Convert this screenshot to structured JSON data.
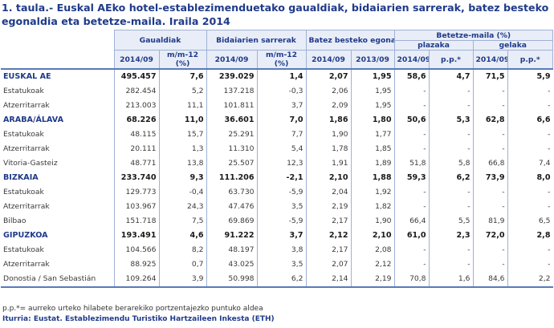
{
  "title": "1. taula.- Euskal AEko hotel-establezimenduetako gaualdiak, bidaiarien sarrerak, batez besteko egonaldia eta betetze-maila. Iraila 2014",
  "headers": {
    "gaualdiak": "Gaualdiak",
    "bidaiarien": "Bidaiarien sarrerak",
    "batez": "Batez besteko egonaldia",
    "betetze": "Betetze-maila (%)",
    "plazaka": "plazaka",
    "gelaka": "gelaka",
    "y2014": "2014/09",
    "y2013": "2013/09",
    "mm12": "m/m-12 (%)",
    "pp": "p.p.*"
  },
  "rows": [
    {
      "type": "main",
      "label": "EUSKAL AE",
      "c": [
        "495.457",
        "7,6",
        "239.029",
        "1,4",
        "2,07",
        "1,95",
        "58,6",
        "4,7",
        "71,5",
        "5,9"
      ]
    },
    {
      "type": "sub",
      "label": "Estatukoak",
      "c": [
        "282.454",
        "5,2",
        "137.218",
        "-0,3",
        "2,06",
        "1,95",
        "-",
        "-",
        "-",
        "-"
      ]
    },
    {
      "type": "sub",
      "label": "Atzerritarrak",
      "c": [
        "213.003",
        "11,1",
        "101.811",
        "3,7",
        "2,09",
        "1,95",
        "-",
        "-",
        "-",
        "-"
      ]
    },
    {
      "type": "main",
      "label": "ARABA/ÁLAVA",
      "c": [
        "68.226",
        "11,0",
        "36.601",
        "7,0",
        "1,86",
        "1,80",
        "50,6",
        "5,3",
        "62,8",
        "6,6"
      ]
    },
    {
      "type": "sub",
      "label": "Estatukoak",
      "c": [
        "48.115",
        "15,7",
        "25.291",
        "7,7",
        "1,90",
        "1,77",
        "-",
        "-",
        "-",
        "-"
      ]
    },
    {
      "type": "sub",
      "label": "Atzerritarrak",
      "c": [
        "20.111",
        "1,3",
        "11.310",
        "5,4",
        "1,78",
        "1,85",
        "-",
        "-",
        "-",
        "-"
      ]
    },
    {
      "type": "sub",
      "label": "Vitoria-Gasteiz",
      "c": [
        "48.771",
        "13,8",
        "25.507",
        "12,3",
        "1,91",
        "1,89",
        "51,8",
        "5,8",
        "66,8",
        "7,4"
      ]
    },
    {
      "type": "main",
      "label": "BIZKAIA",
      "c": [
        "233.740",
        "9,3",
        "111.206",
        "-2,1",
        "2,10",
        "1,88",
        "59,3",
        "6,2",
        "73,9",
        "8,0"
      ]
    },
    {
      "type": "sub",
      "label": "Estatukoak",
      "c": [
        "129.773",
        "-0,4",
        "63.730",
        "-5,9",
        "2,04",
        "1,92",
        "-",
        "-",
        "-",
        "-"
      ]
    },
    {
      "type": "sub",
      "label": "Atzerritarrak",
      "c": [
        "103.967",
        "24,3",
        "47.476",
        "3,5",
        "2,19",
        "1,82",
        "-",
        "-",
        "-",
        "-"
      ]
    },
    {
      "type": "sub",
      "label": "Bilbao",
      "c": [
        "151.718",
        "7,5",
        "69.869",
        "-5,9",
        "2,17",
        "1,90",
        "66,4",
        "5,5",
        "81,9",
        "6,5"
      ]
    },
    {
      "type": "main",
      "label": "GIPUZKOA",
      "c": [
        "193.491",
        "4,6",
        "91.222",
        "3,7",
        "2,12",
        "2,10",
        "61,0",
        "2,3",
        "72,0",
        "2,8"
      ]
    },
    {
      "type": "sub",
      "label": "Estatukoak",
      "c": [
        "104.566",
        "8,2",
        "48.197",
        "3,8",
        "2,17",
        "2,08",
        "-",
        "-",
        "-",
        "-"
      ]
    },
    {
      "type": "sub",
      "label": "Atzerritarrak",
      "c": [
        "88.925",
        "0,7",
        "43.025",
        "3,5",
        "2,07",
        "2,12",
        "-",
        "-",
        "-",
        "-"
      ]
    },
    {
      "type": "sub",
      "label": "Donostia / San Sebastián",
      "c": [
        "109.264",
        "3,9",
        "50.998",
        "6,2",
        "2,14",
        "2,19",
        "70,8",
        "1,6",
        "84,6",
        "2,2"
      ]
    }
  ],
  "note": "p.p.*= aurreko urteko hilabete berarekiko portzentajezko puntuko aldea",
  "source": "Iturria: Eustat. Establezimendu Turistiko Hartzaileen Inkesta (ETH)"
}
